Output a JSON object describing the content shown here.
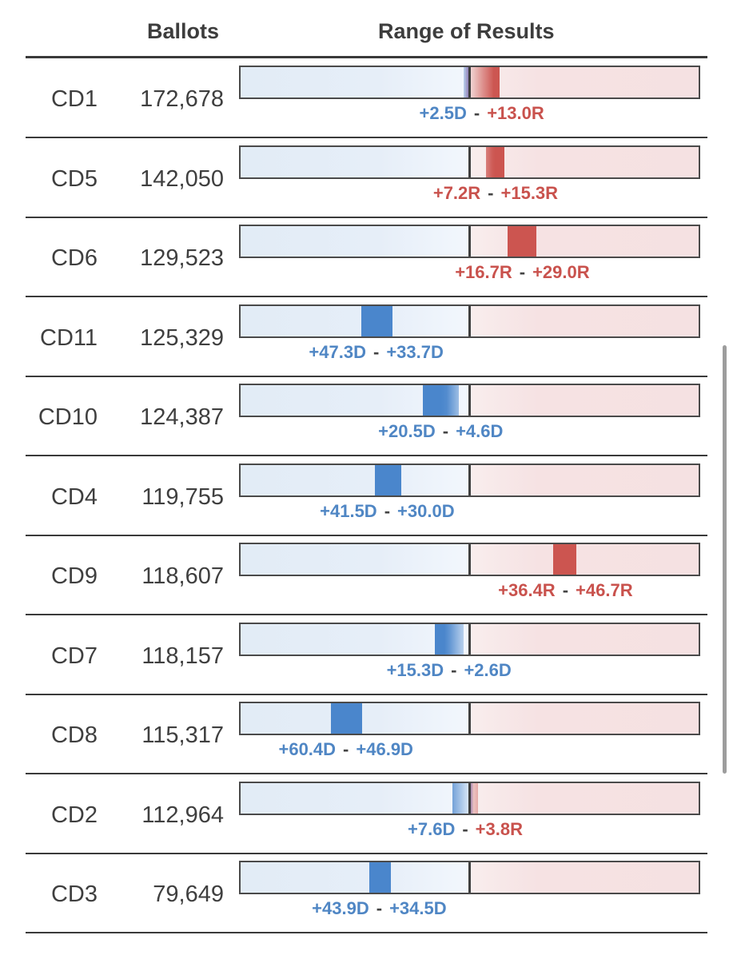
{
  "header": {
    "ballots_label": "Ballots",
    "range_label": "Range of Results"
  },
  "colors": {
    "dem": "#4a86cc",
    "rep": "#cc5550",
    "dem_text": "#4f86c4",
    "rep_text": "#c9524d"
  },
  "chart_data": {
    "type": "table",
    "scale_min": -100,
    "scale_max": 100,
    "center": 0,
    "columns": [
      "",
      "Ballots",
      "Range of Results"
    ],
    "rows": [
      {
        "district": "CD1",
        "ballots": "172,678",
        "range_low": -2.5,
        "range_high": 13.0,
        "low_label": "+2.5D",
        "high_label": "+13.0R"
      },
      {
        "district": "CD5",
        "ballots": "142,050",
        "range_low": 7.2,
        "range_high": 15.3,
        "low_label": "+7.2R",
        "high_label": "+15.3R"
      },
      {
        "district": "CD6",
        "ballots": "129,523",
        "range_low": 16.7,
        "range_high": 29.0,
        "low_label": "+16.7R",
        "high_label": "+29.0R"
      },
      {
        "district": "CD11",
        "ballots": "125,329",
        "range_low": -47.3,
        "range_high": -33.7,
        "low_label": "+47.3D",
        "high_label": "+33.7D"
      },
      {
        "district": "CD10",
        "ballots": "124,387",
        "range_low": -20.5,
        "range_high": -4.6,
        "low_label": "+20.5D",
        "high_label": "+4.6D"
      },
      {
        "district": "CD4",
        "ballots": "119,755",
        "range_low": -41.5,
        "range_high": -30.0,
        "low_label": "+41.5D",
        "high_label": "+30.0D"
      },
      {
        "district": "CD9",
        "ballots": "118,607",
        "range_low": 36.4,
        "range_high": 46.7,
        "low_label": "+36.4R",
        "high_label": "+46.7R"
      },
      {
        "district": "CD7",
        "ballots": "118,157",
        "range_low": -15.3,
        "range_high": -2.6,
        "low_label": "+15.3D",
        "high_label": "+2.6D"
      },
      {
        "district": "CD8",
        "ballots": "115,317",
        "range_low": -60.4,
        "range_high": -46.9,
        "low_label": "+60.4D",
        "high_label": "+46.9D"
      },
      {
        "district": "CD2",
        "ballots": "112,964",
        "range_low": -7.6,
        "range_high": 3.8,
        "low_label": "+7.6D",
        "high_label": "+3.8R"
      },
      {
        "district": "CD3",
        "ballots": "79,649",
        "range_low": -43.9,
        "range_high": -34.5,
        "low_label": "+43.9D",
        "high_label": "+34.5D"
      }
    ]
  }
}
